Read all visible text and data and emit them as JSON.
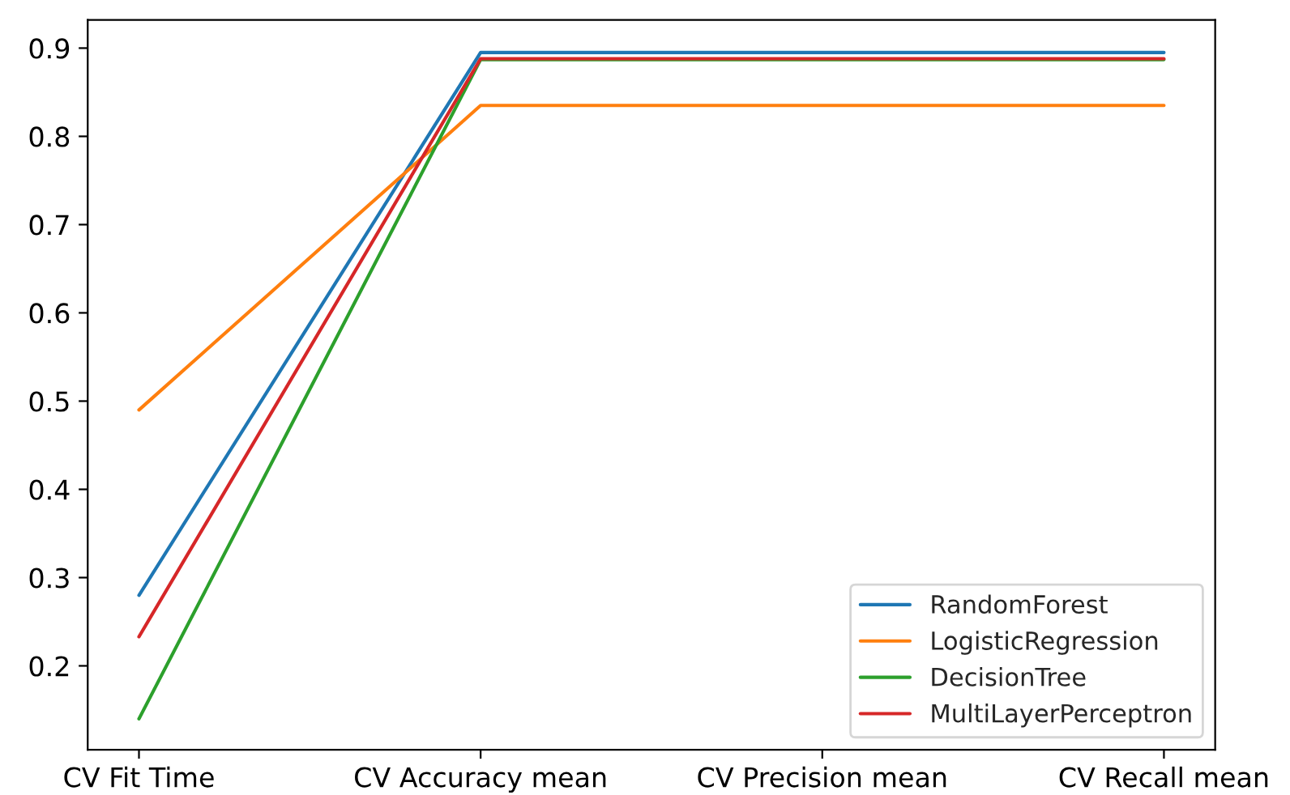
{
  "chart_data": {
    "type": "line",
    "categories": [
      "CV Fit Time",
      "CV Accuracy mean",
      "CV Precision mean",
      "CV Recall mean"
    ],
    "series": [
      {
        "name": "RandomForest",
        "color": "#1f77b4",
        "values": [
          0.28,
          0.895,
          0.895,
          0.895
        ]
      },
      {
        "name": "LogisticRegression",
        "color": "#ff7f0e",
        "values": [
          0.49,
          0.835,
          0.835,
          0.835
        ]
      },
      {
        "name": "DecisionTree",
        "color": "#2ca02c",
        "values": [
          0.14,
          0.887,
          0.887,
          0.887
        ]
      },
      {
        "name": "MultiLayerPerceptron",
        "color": "#d62728",
        "values": [
          0.233,
          0.888,
          0.888,
          0.888
        ]
      }
    ],
    "ylim": [
      0.105,
      0.932
    ],
    "yticks": [
      0.2,
      0.3,
      0.4,
      0.5,
      0.6,
      0.7,
      0.8,
      0.9
    ],
    "legend": "bottom right",
    "grid": false,
    "marker": "none",
    "line_style": "solid"
  }
}
